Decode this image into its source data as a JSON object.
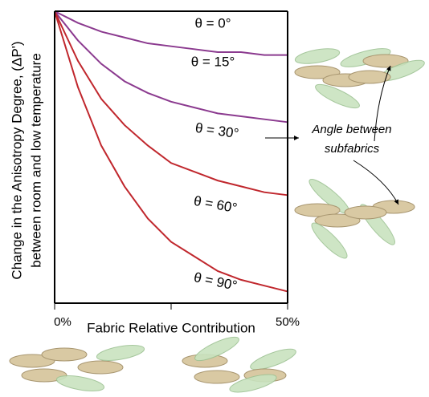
{
  "chart_data": {
    "type": "line",
    "y_label": [
      "Change in the Anisotropy Degree, (ΔP')",
      "between room and low temperature"
    ],
    "x_label": "Fabric Relative Contribution",
    "annotation": [
      "Angle between",
      "subfabrics"
    ],
    "x": [
      0,
      5,
      10,
      15,
      20,
      25,
      30,
      35,
      40,
      45,
      50
    ],
    "xlim": [
      0,
      50
    ],
    "xticks": [
      {
        "value": 0,
        "label": "0%"
      },
      {
        "value": 50,
        "label": "50%"
      }
    ],
    "ylim": [
      -100,
      0
    ],
    "series": [
      {
        "name": "θ = 0°",
        "color": "#8b3a8f",
        "values": [
          0,
          0,
          0,
          0,
          0,
          0,
          0,
          0,
          0,
          0,
          0
        ]
      },
      {
        "name": "θ = 15°",
        "color": "#8b3a8f",
        "values": [
          0,
          -4,
          -7,
          -9,
          -11,
          -12,
          -13,
          -14,
          -14,
          -15,
          -15
        ]
      },
      {
        "name": "θ = 30°",
        "color": "#8b3a8f",
        "values": [
          0,
          -10,
          -18,
          -24,
          -28,
          -31,
          -33,
          -35,
          -36,
          -37,
          -38
        ]
      },
      {
        "name": "θ = 60°",
        "color": "#c0272d",
        "values": [
          0,
          -17,
          -30,
          -39,
          -46,
          -52,
          -55,
          -58,
          -60,
          -62,
          -63
        ]
      },
      {
        "name": "θ = 90°",
        "color": "#c0272d",
        "values": [
          0,
          -26,
          -46,
          -60,
          -71,
          -79,
          -84,
          -89,
          -92,
          -94,
          -96
        ]
      }
    ]
  }
}
